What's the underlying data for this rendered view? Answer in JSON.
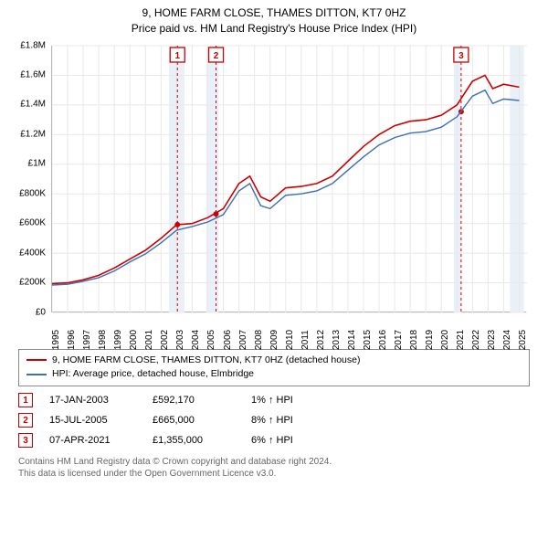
{
  "title": {
    "line1": "9, HOME FARM CLOSE, THAMES DITTON, KT7 0HZ",
    "line2": "Price paid vs. HM Land Registry's House Price Index (HPI)",
    "fontsize": 12,
    "color": "#000000"
  },
  "chart": {
    "type": "line",
    "background": "#ffffff",
    "grid_color": "#e8e8e8",
    "axis_color": "#888888",
    "highlight_band_color": "#eaf0f8",
    "highlight_bands": [
      {
        "from": 2002.5,
        "to": 2003.5
      },
      {
        "from": 2004.9,
        "to": 2005.7
      },
      {
        "from": 2020.8,
        "to": 2021.3
      },
      {
        "from": 2024.4,
        "to": 2025.3
      }
    ],
    "y": {
      "min": 0,
      "max": 1800000,
      "tick_step": 200000,
      "labels": [
        "£0",
        "£200K",
        "£400K",
        "£600K",
        "£800K",
        "£1M",
        "£1.2M",
        "£1.4M",
        "£1.6M",
        "£1.8M"
      ],
      "label_fontsize": 10
    },
    "x": {
      "min": 1995,
      "max": 2025.5,
      "ticks": [
        1995,
        1996,
        1997,
        1998,
        1999,
        2000,
        2001,
        2002,
        2003,
        2004,
        2005,
        2006,
        2007,
        2008,
        2009,
        2010,
        2011,
        2012,
        2013,
        2014,
        2015,
        2016,
        2017,
        2018,
        2019,
        2020,
        2021,
        2022,
        2023,
        2024,
        2025
      ],
      "label_fontsize": 10,
      "label_rotation": -90
    },
    "series": [
      {
        "name": "property",
        "label": "9, HOME FARM CLOSE, THAMES DITTON, KT7 0HZ (detached house)",
        "color": "#cc0000",
        "width": 1.6,
        "data": [
          [
            1995,
            195000
          ],
          [
            1996,
            200000
          ],
          [
            1997,
            220000
          ],
          [
            1998,
            250000
          ],
          [
            1999,
            300000
          ],
          [
            2000,
            360000
          ],
          [
            2001,
            420000
          ],
          [
            2002,
            500000
          ],
          [
            2003,
            592000
          ],
          [
            2004,
            600000
          ],
          [
            2005,
            640000
          ],
          [
            2006,
            700000
          ],
          [
            2007,
            870000
          ],
          [
            2007.7,
            920000
          ],
          [
            2008.4,
            780000
          ],
          [
            2009,
            750000
          ],
          [
            2010,
            840000
          ],
          [
            2011,
            850000
          ],
          [
            2012,
            870000
          ],
          [
            2013,
            920000
          ],
          [
            2014,
            1020000
          ],
          [
            2015,
            1120000
          ],
          [
            2016,
            1200000
          ],
          [
            2017,
            1260000
          ],
          [
            2018,
            1290000
          ],
          [
            2019,
            1300000
          ],
          [
            2020,
            1330000
          ],
          [
            2021,
            1400000
          ],
          [
            2022,
            1560000
          ],
          [
            2022.8,
            1600000
          ],
          [
            2023.3,
            1510000
          ],
          [
            2024,
            1540000
          ],
          [
            2025,
            1520000
          ]
        ]
      },
      {
        "name": "hpi",
        "label": "HPI: Average price, detached house, Elmbridge",
        "color": "#3b6fb6",
        "width": 1.4,
        "data": [
          [
            1995,
            185000
          ],
          [
            1996,
            190000
          ],
          [
            1997,
            210000
          ],
          [
            1998,
            235000
          ],
          [
            1999,
            280000
          ],
          [
            2000,
            340000
          ],
          [
            2001,
            395000
          ],
          [
            2002,
            470000
          ],
          [
            2003,
            555000
          ],
          [
            2004,
            580000
          ],
          [
            2005,
            610000
          ],
          [
            2006,
            660000
          ],
          [
            2007,
            820000
          ],
          [
            2007.7,
            870000
          ],
          [
            2008.4,
            720000
          ],
          [
            2009,
            700000
          ],
          [
            2010,
            790000
          ],
          [
            2011,
            800000
          ],
          [
            2012,
            820000
          ],
          [
            2013,
            870000
          ],
          [
            2014,
            960000
          ],
          [
            2015,
            1050000
          ],
          [
            2016,
            1130000
          ],
          [
            2017,
            1180000
          ],
          [
            2018,
            1210000
          ],
          [
            2019,
            1220000
          ],
          [
            2020,
            1250000
          ],
          [
            2021,
            1320000
          ],
          [
            2022,
            1460000
          ],
          [
            2022.8,
            1500000
          ],
          [
            2023.3,
            1410000
          ],
          [
            2024,
            1440000
          ],
          [
            2025,
            1430000
          ]
        ]
      }
    ],
    "markers": [
      {
        "id": "1",
        "x": 2003.05,
        "y": 592170,
        "dash_color": "#cc0000"
      },
      {
        "id": "2",
        "x": 2005.53,
        "y": 665000,
        "dash_color": "#cc0000"
      },
      {
        "id": "3",
        "x": 2021.27,
        "y": 1355000,
        "dash_color": "#cc0000"
      }
    ],
    "marker_box": {
      "border_color": "#cc0000",
      "text_color": "#cc0000",
      "size": 16
    }
  },
  "legend": {
    "items": [
      {
        "color": "#cc0000",
        "label": "9, HOME FARM CLOSE, THAMES DITTON, KT7 0HZ (detached house)"
      },
      {
        "color": "#3b6fb6",
        "label": "HPI: Average price, detached house, Elmbridge"
      }
    ],
    "border_color": "#888888",
    "fontsize": 10.5
  },
  "transactions": [
    {
      "id": "1",
      "date": "17-JAN-2003",
      "price": "£592,170",
      "delta": "1% ↑ HPI"
    },
    {
      "id": "2",
      "date": "15-JUL-2005",
      "price": "£665,000",
      "delta": "8% ↑ HPI"
    },
    {
      "id": "3",
      "date": "07-APR-2021",
      "price": "£1,355,000",
      "delta": "6% ↑ HPI"
    }
  ],
  "footer": {
    "line1": "Contains HM Land Registry data © Crown copyright and database right 2024.",
    "line2": "This data is licensed under the Open Government Licence v3.0.",
    "color": "#666666",
    "fontsize": 10
  }
}
